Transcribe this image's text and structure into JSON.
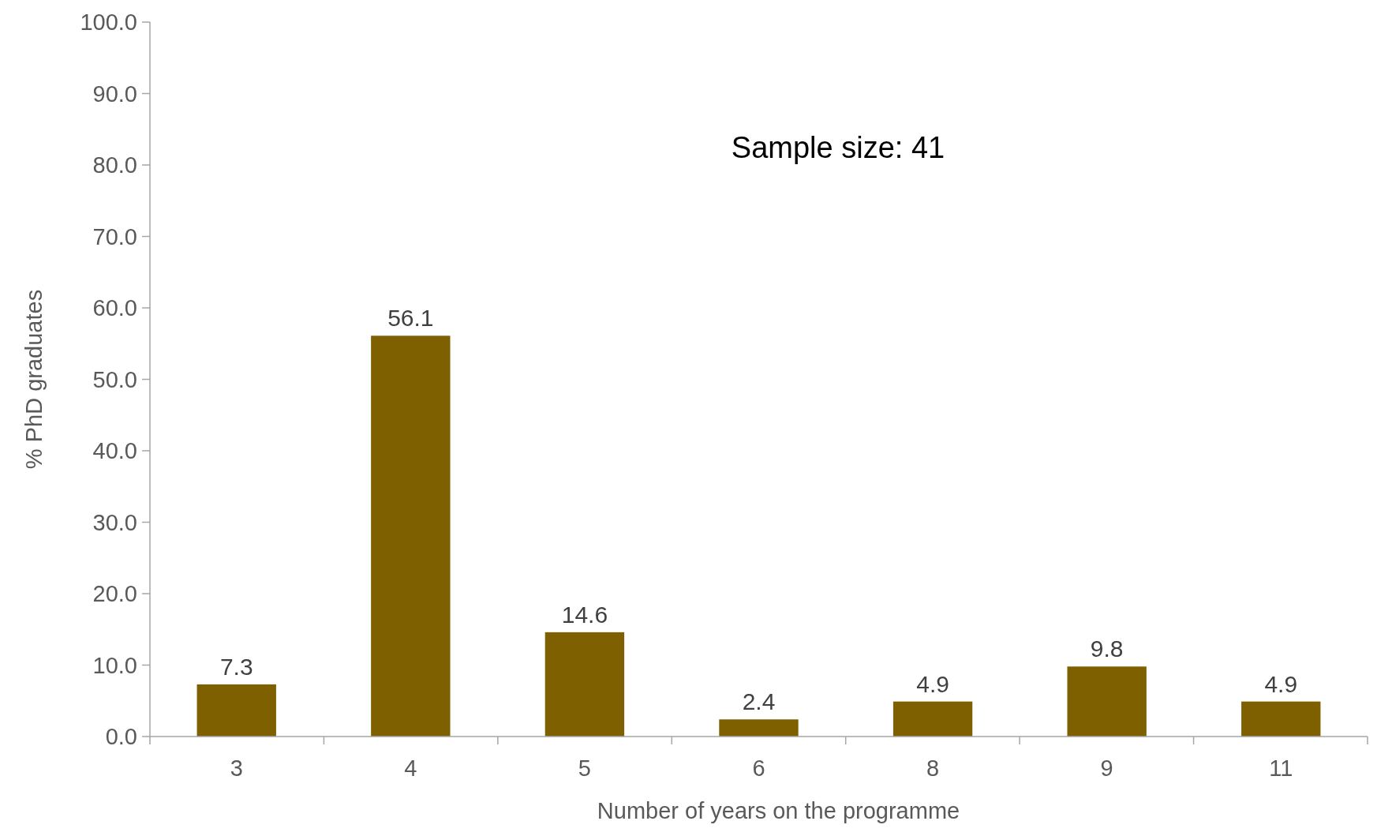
{
  "chart_data": {
    "type": "bar",
    "xlabel": "Number of years on the programme",
    "ylabel": "% PhD graduates",
    "categories": [
      "3",
      "4",
      "5",
      "6",
      "8",
      "9",
      "11"
    ],
    "values": [
      7.3,
      56.1,
      14.6,
      2.4,
      4.9,
      9.8,
      4.9
    ],
    "color": "#7f6000",
    "ylim": [
      0,
      100
    ],
    "yticks": [
      {
        "value": 0,
        "label": "0.0"
      },
      {
        "value": 10,
        "label": "10.0"
      },
      {
        "value": 20,
        "label": "20.0"
      },
      {
        "value": 30,
        "label": "30.0"
      },
      {
        "value": 40,
        "label": "40.0"
      },
      {
        "value": 50,
        "label": "50.0"
      },
      {
        "value": 60,
        "label": "60.0"
      },
      {
        "value": 70,
        "label": "70.0"
      },
      {
        "value": 80,
        "label": "80.0"
      },
      {
        "value": 90,
        "label": "90.0"
      },
      {
        "value": 100,
        "label": "100.0"
      }
    ],
    "data_labels": true,
    "annotations": [
      "Sample size: 41"
    ]
  }
}
